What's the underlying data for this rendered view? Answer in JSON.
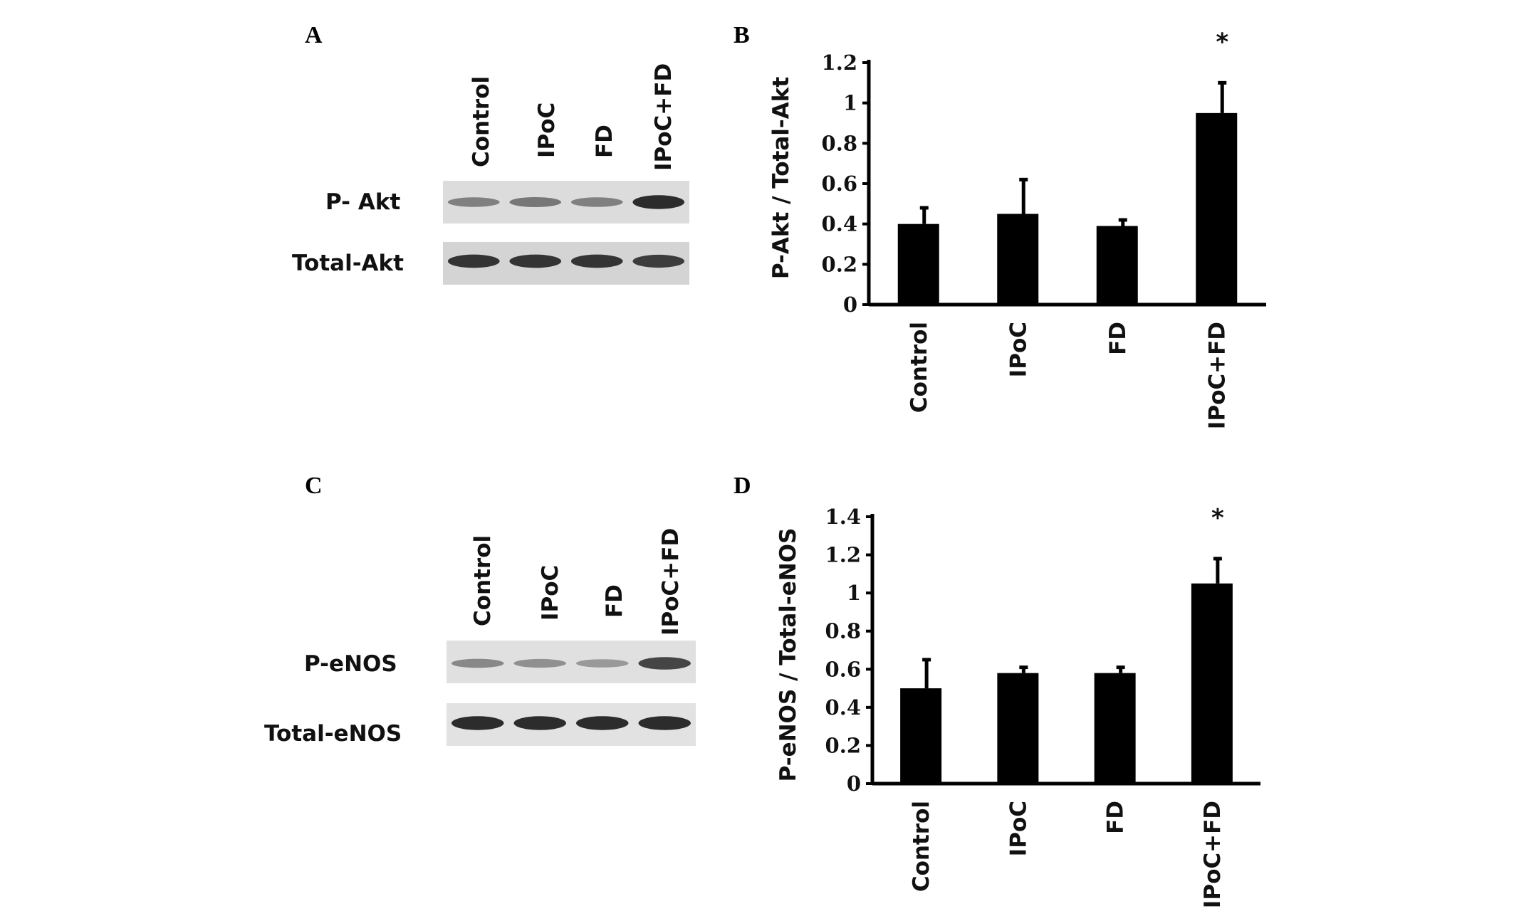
{
  "panels": {
    "A": "A",
    "B": "B",
    "C": "C",
    "D": "D"
  },
  "blots": [
    {
      "lanes": [
        "Control",
        "IPoC",
        "FD",
        "IPoC+FD"
      ],
      "rows": [
        {
          "label": "P- Akt",
          "intensities": [
            0.45,
            0.5,
            0.45,
            0.95
          ]
        },
        {
          "label": "Total-Akt",
          "intensities": [
            0.9,
            0.9,
            0.9,
            0.85
          ]
        }
      ]
    },
    {
      "lanes": [
        "Control",
        "IPoC",
        "FD",
        "IPoC+FD"
      ],
      "rows": [
        {
          "label": "P-eNOS",
          "intensities": [
            0.4,
            0.35,
            0.3,
            0.8
          ]
        },
        {
          "label": "Total-eNOS",
          "intensities": [
            0.95,
            0.95,
            0.95,
            0.95
          ]
        }
      ]
    }
  ],
  "chart_data": [
    {
      "type": "bar",
      "panel": "B",
      "categories": [
        "Control",
        "IPoC",
        "FD",
        "IPoC+FD"
      ],
      "values": [
        0.4,
        0.45,
        0.39,
        0.95
      ],
      "errors": [
        0.08,
        0.17,
        0.03,
        0.15
      ],
      "significance": [
        "",
        "",
        "",
        "*"
      ],
      "ylabel": "P-Akt / Total-Akt",
      "ylim": [
        0,
        1.2
      ],
      "yticks": [
        "0",
        "0.2",
        "0.4",
        "0.6",
        "0.8",
        "1",
        "1.2"
      ],
      "bar_color": "#000000",
      "grid": false
    },
    {
      "type": "bar",
      "panel": "D",
      "categories": [
        "Control",
        "IPoC",
        "FD",
        "IPoC+FD"
      ],
      "values": [
        0.5,
        0.58,
        0.58,
        1.05
      ],
      "errors": [
        0.15,
        0.03,
        0.03,
        0.13
      ],
      "significance": [
        "",
        "",
        "",
        "*"
      ],
      "ylabel": "P-eNOS / Total-eNOS",
      "ylim": [
        0,
        1.4
      ],
      "yticks": [
        "0",
        "0.2",
        "0.4",
        "0.6",
        "0.8",
        "1",
        "1.2",
        "1.4"
      ],
      "bar_color": "#000000",
      "grid": false
    }
  ]
}
